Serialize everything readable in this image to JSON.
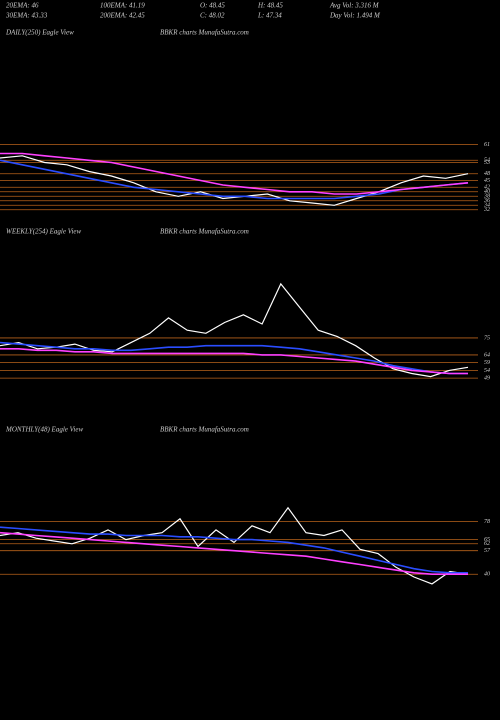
{
  "header": {
    "row1": [
      "20EMA: 46",
      "100EMA: 41.19",
      "O: 48.45",
      "H: 48.45",
      "Avg Vol: 3.316  M"
    ],
    "row2": [
      "30EMA: 43.33",
      "200EMA: 42.45",
      "C: 48.02",
      "L: 47.34",
      "Day Vol: 1.494  M"
    ]
  },
  "chart_data": [
    {
      "type": "line",
      "title": "DAILY(250) Eagle View",
      "subtitle": "BBKR charts MunafaSutra.com",
      "ylim": [
        31,
        63
      ],
      "yticks": [
        61,
        54,
        53,
        48,
        45,
        42,
        40,
        38,
        36,
        34,
        32
      ],
      "series": [
        {
          "color": "#ffffff",
          "values": [
            55,
            56,
            53,
            52,
            49,
            47,
            44,
            40,
            38,
            40,
            37,
            38,
            39,
            36,
            35,
            34,
            37,
            40,
            44,
            47,
            46,
            48.02
          ]
        },
        {
          "color": "#2a4dff",
          "values": [
            54,
            52,
            50,
            48,
            46,
            44,
            42,
            41,
            40,
            39,
            38,
            38,
            37,
            37,
            37,
            37,
            38,
            39,
            41,
            42,
            43,
            44
          ]
        },
        {
          "color": "#ff40ff",
          "values": [
            57,
            57,
            56,
            55,
            54,
            53,
            51,
            49,
            47,
            45,
            43,
            42,
            41,
            40,
            40,
            39,
            39,
            40,
            41,
            42,
            43,
            44
          ]
        }
      ]
    },
    {
      "type": "line",
      "title": "WEEKLY(254) Eagle View",
      "subtitle": "BBKR charts MunafaSutra.com",
      "ylim": [
        40,
        130
      ],
      "yticks": [
        75,
        64,
        59,
        54,
        49
      ],
      "series": [
        {
          "color": "#ffffff",
          "values": [
            70,
            72,
            68,
            69,
            71,
            67,
            66,
            72,
            78,
            88,
            80,
            78,
            85,
            90,
            84,
            110,
            95,
            80,
            76,
            70,
            62,
            55,
            52,
            50,
            54,
            56
          ]
        },
        {
          "color": "#2a4dff",
          "values": [
            72,
            71,
            70,
            69,
            68,
            68,
            67,
            67,
            68,
            69,
            69,
            70,
            70,
            70,
            70,
            69,
            68,
            66,
            64,
            62,
            60,
            57,
            55,
            53,
            52,
            52
          ]
        },
        {
          "color": "#ff40ff",
          "values": [
            68,
            68,
            67,
            67,
            66,
            66,
            65,
            65,
            65,
            65,
            65,
            65,
            65,
            65,
            64,
            64,
            63,
            62,
            61,
            60,
            58,
            56,
            54,
            53,
            52,
            52
          ]
        }
      ]
    },
    {
      "type": "line",
      "title": "MONTHLY(48) Eagle View",
      "subtitle": "BBKR charts MunafaSutra.com",
      "ylim": [
        25,
        90
      ],
      "yticks": [
        78,
        65,
        62,
        57,
        40
      ],
      "series": [
        {
          "color": "#ffffff",
          "values": [
            68,
            70,
            66,
            64,
            62,
            66,
            72,
            65,
            68,
            70,
            80,
            60,
            72,
            63,
            75,
            70,
            88,
            70,
            68,
            72,
            58,
            55,
            45,
            38,
            33,
            42,
            40
          ]
        },
        {
          "color": "#2a4dff",
          "values": [
            74,
            73,
            72,
            71,
            70,
            69,
            69,
            68,
            68,
            68,
            67,
            67,
            66,
            65,
            65,
            64,
            63,
            61,
            59,
            56,
            53,
            50,
            47,
            44,
            42,
            41,
            41
          ]
        },
        {
          "color": "#ff40ff",
          "values": [
            70,
            69,
            68,
            67,
            66,
            65,
            64,
            63,
            62,
            61,
            60,
            59,
            58,
            57,
            56,
            55,
            54,
            53,
            51,
            49,
            47,
            45,
            43,
            41,
            40,
            40,
            40
          ]
        }
      ]
    }
  ]
}
